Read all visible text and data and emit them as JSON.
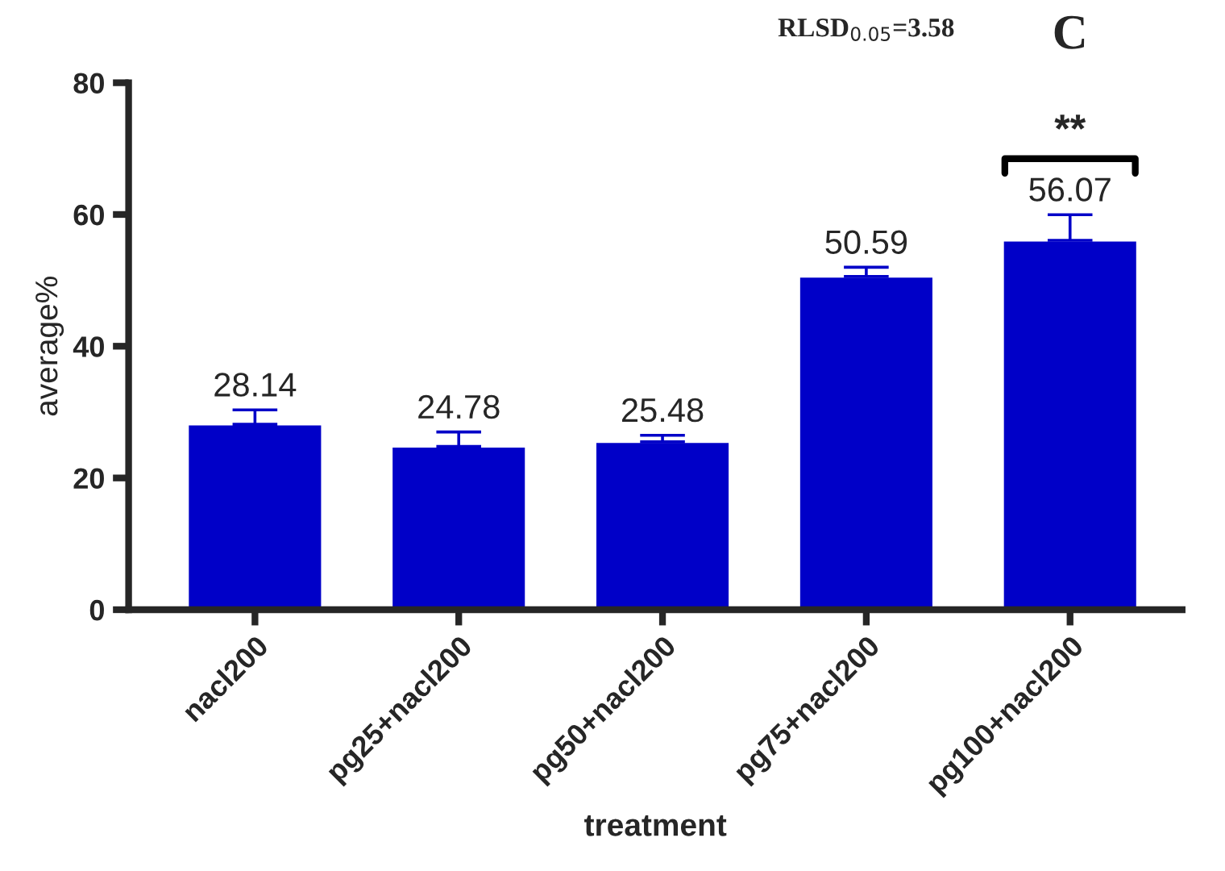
{
  "chart_data": {
    "type": "bar",
    "xlabel": "treatment",
    "ylabel": "average%",
    "categories": [
      "nacl200",
      "pg25+nacl200",
      "pg50+nacl200",
      "pg75+nacl200",
      "pg100+nacl200"
    ],
    "values": [
      28.14,
      24.78,
      25.48,
      50.59,
      56.07
    ],
    "errors": [
      2.2,
      2.2,
      1.0,
      1.4,
      3.9
    ],
    "color": "#0000c8",
    "ylim": [
      0,
      80
    ],
    "yticks": [
      0,
      20,
      40,
      60,
      80
    ],
    "data_labels": true,
    "grid": false,
    "legend": false,
    "annotations": [
      "RLSD$_{0.05}$=3.58",
      "C",
      "**"
    ]
  }
}
